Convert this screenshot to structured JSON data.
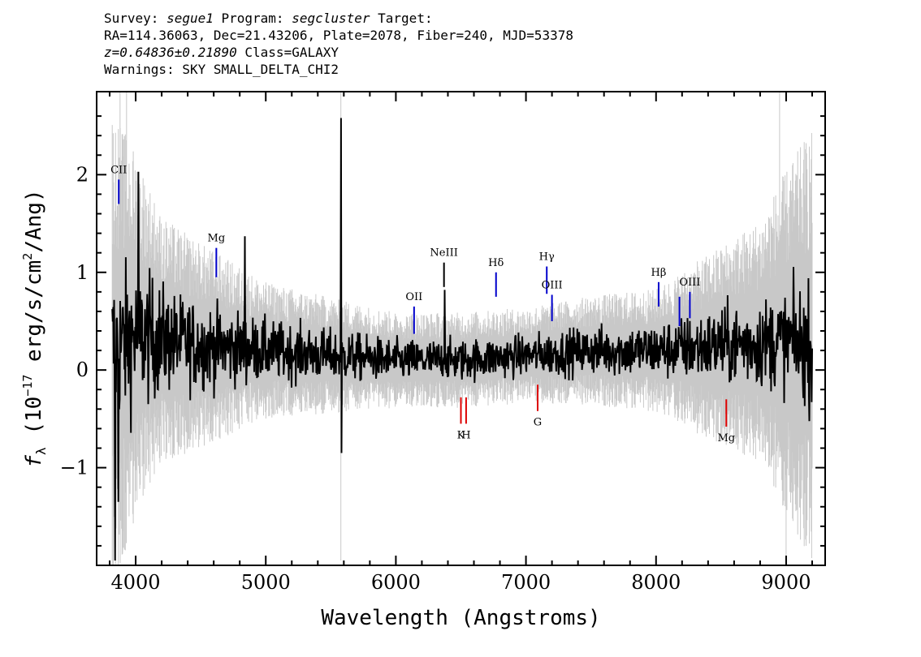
{
  "header": {
    "line1": {
      "survey_label": "Survey: ",
      "survey": "segue1",
      "program_label": " Program: ",
      "program": "segcluster",
      "target_label": " Target:"
    },
    "line2": "RA=114.36063, Dec=21.43206, Plate=2078, Fiber=240, MJD=53378",
    "line3": {
      "z": "z=0.64836±0.21890",
      "class": " Class=GALAXY"
    },
    "line4": "Warnings: SKY SMALL_DELTA_CHI2"
  },
  "chart_data": {
    "type": "line",
    "title": "",
    "xlabel": "Wavelength (Angstroms)",
    "ylabel": "f_λ (10^-17 erg/s/cm^2/Ang)",
    "ylabel_parts": {
      "f": "f",
      "lambda": "λ",
      "pre": " (10",
      "exp1": "−17",
      "mid": " erg/s/cm",
      "exp2": "2",
      "post": "/Ang)"
    },
    "xlim": [
      3700,
      9300
    ],
    "ylim": [
      -2.0,
      2.85
    ],
    "xticks": [
      4000,
      5000,
      6000,
      7000,
      8000,
      9000
    ],
    "xtick_labels": [
      "4000",
      "5000",
      "6000",
      "7000",
      "8000",
      "9000"
    ],
    "yticks": [
      -1,
      0,
      1,
      2
    ],
    "ytick_labels": [
      "−1",
      "0",
      "1",
      "2"
    ],
    "grid": false,
    "colors": {
      "flux": "#000000",
      "error": "#c8c8c8",
      "emission": "#0000cc",
      "absorption": "#dd0000",
      "neutral": "#000000"
    },
    "series": [
      {
        "name": "flux",
        "style": "black line",
        "x_range": [
          3820,
          9200
        ],
        "points": 1500,
        "anchors": [
          [
            3820,
            0.2
          ],
          [
            4000,
            0.35
          ],
          [
            4500,
            0.25
          ],
          [
            5000,
            0.2
          ],
          [
            5500,
            0.15
          ],
          [
            6000,
            0.1
          ],
          [
            6500,
            0.1
          ],
          [
            7000,
            0.15
          ],
          [
            7500,
            0.2
          ],
          [
            8000,
            0.2
          ],
          [
            8500,
            0.25
          ],
          [
            9000,
            0.3
          ],
          [
            9200,
            0.25
          ]
        ],
        "noise": [
          [
            3820,
            0.6
          ],
          [
            4300,
            0.35
          ],
          [
            5000,
            0.22
          ],
          [
            6000,
            0.15
          ],
          [
            7000,
            0.15
          ],
          [
            8000,
            0.2
          ],
          [
            9000,
            0.35
          ],
          [
            9200,
            0.45
          ]
        ],
        "spikes": [
          [
            5577,
            2.58
          ],
          [
            5583,
            -0.85
          ],
          [
            3840,
            -1.95
          ],
          [
            3865,
            -1.35
          ],
          [
            4020,
            2.03
          ],
          [
            4840,
            1.37
          ],
          [
            6375,
            0.82
          ]
        ]
      },
      {
        "name": "error",
        "style": "grey band",
        "halfwidth": [
          [
            3800,
            1.8
          ],
          [
            4200,
            0.9
          ],
          [
            5000,
            0.5
          ],
          [
            6000,
            0.35
          ],
          [
            7000,
            0.35
          ],
          [
            8000,
            0.45
          ],
          [
            8800,
            0.9
          ],
          [
            9200,
            1.6
          ]
        ],
        "spikes": [
          [
            5577,
            -1.95
          ],
          [
            5577,
            2.85
          ],
          [
            3880,
            2.85
          ],
          [
            3930,
            2.85
          ],
          [
            8950,
            2.85
          ],
          [
            9000,
            -1.95
          ]
        ]
      }
    ],
    "line_markers": [
      {
        "label": "CII",
        "x": 3870,
        "y1": 1.7,
        "y2": 1.95,
        "color": "emission",
        "pos": "above"
      },
      {
        "label": "Mg",
        "x": 4620,
        "y1": 0.95,
        "y2": 1.25,
        "color": "emission",
        "pos": "above"
      },
      {
        "label": "OII",
        "x": 6140,
        "y1": 0.37,
        "y2": 0.65,
        "color": "emission",
        "pos": "above"
      },
      {
        "label": "NeIII",
        "x": 6370,
        "y1": 0.85,
        "y2": 1.1,
        "color": "neutral",
        "pos": "above"
      },
      {
        "label": "Hδ",
        "x": 6770,
        "y1": 0.75,
        "y2": 1.0,
        "color": "emission",
        "pos": "above"
      },
      {
        "label": "Hγ",
        "x": 7160,
        "y1": 0.78,
        "y2": 1.06,
        "color": "emission",
        "pos": "above"
      },
      {
        "label": "OIII",
        "x": 7200,
        "y1": 0.5,
        "y2": 0.77,
        "color": "emission",
        "pos": "above"
      },
      {
        "label": "Hβ",
        "x": 8020,
        "y1": 0.65,
        "y2": 0.9,
        "color": "emission",
        "pos": "above"
      },
      {
        "label": "",
        "x": 8180,
        "y1": 0.45,
        "y2": 0.75,
        "color": "emission",
        "pos": "above"
      },
      {
        "label": "OIII",
        "x": 8260,
        "y1": 0.53,
        "y2": 0.8,
        "color": "emission",
        "pos": "above"
      },
      {
        "label": "K",
        "x": 6500,
        "y1": -0.55,
        "y2": -0.28,
        "color": "absorption",
        "pos": "below"
      },
      {
        "label": "H",
        "x": 6540,
        "y1": -0.55,
        "y2": -0.28,
        "color": "absorption",
        "pos": "below"
      },
      {
        "label": "G",
        "x": 7090,
        "y1": -0.42,
        "y2": -0.15,
        "color": "absorption",
        "pos": "below"
      },
      {
        "label": "Mg",
        "x": 8540,
        "y1": -0.58,
        "y2": -0.3,
        "color": "absorption",
        "pos": "below"
      }
    ]
  }
}
